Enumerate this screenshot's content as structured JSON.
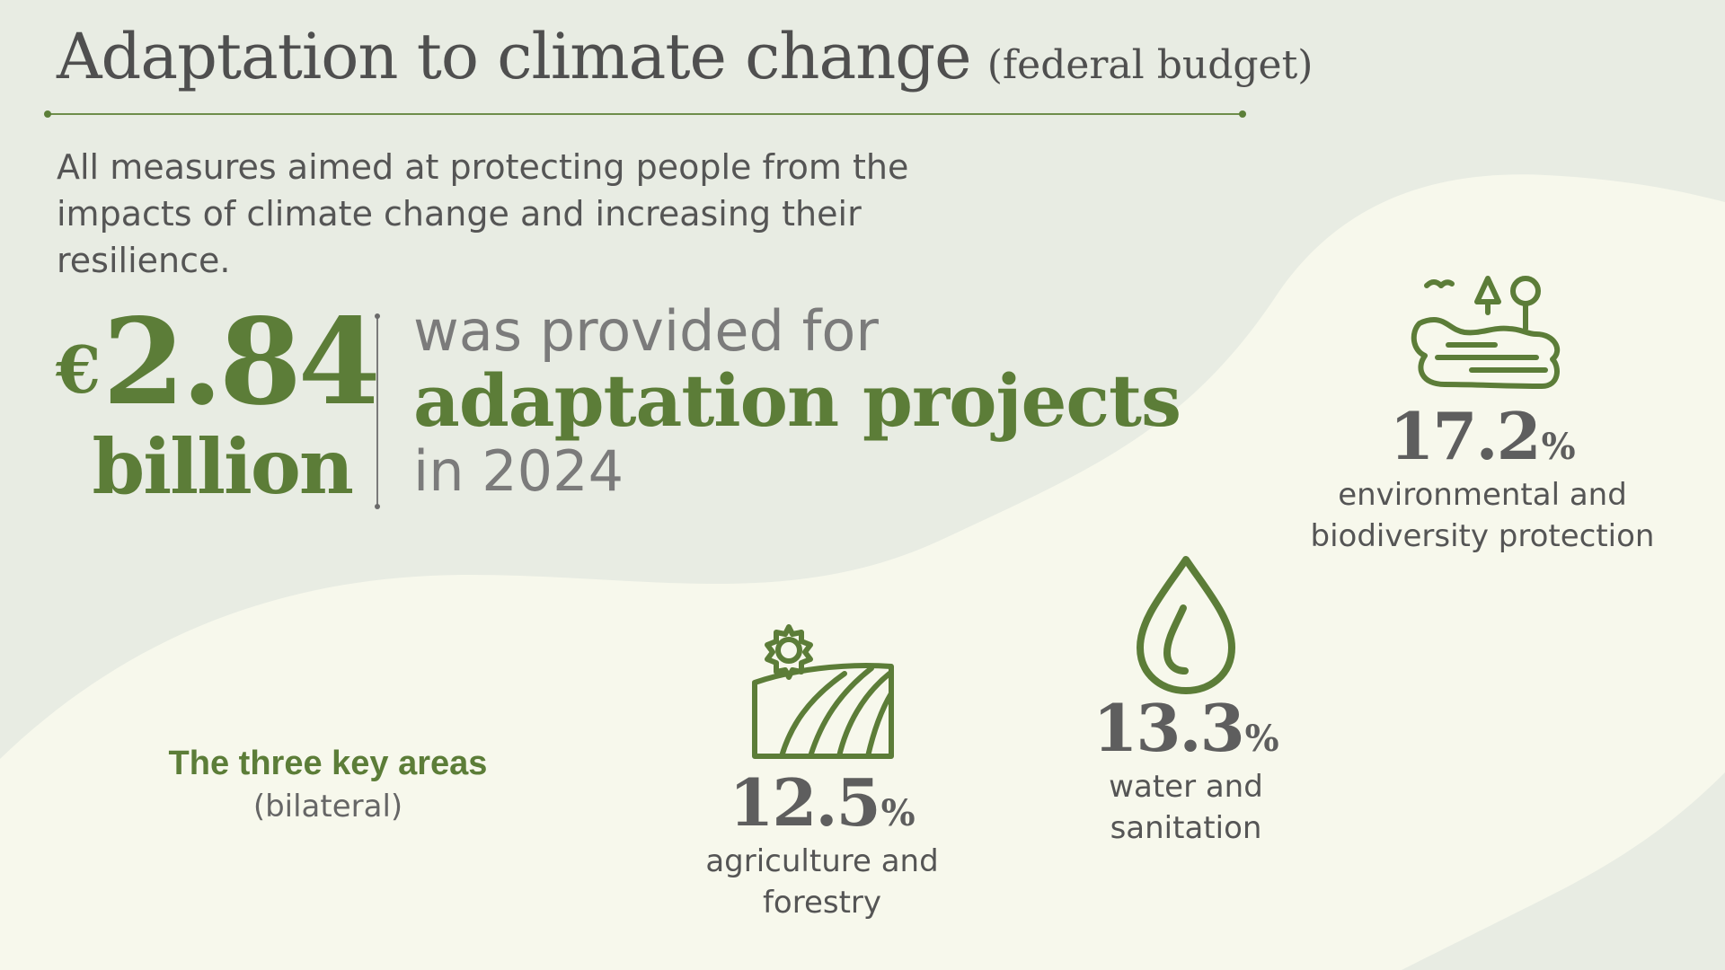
{
  "header": {
    "title": "Adaptation to climate change",
    "title_suffix": "(federal budget)",
    "subtitle": "All measures aimed at protecting people from the impacts of climate change and increasing their resilience."
  },
  "headline": {
    "currency": "€",
    "amount": "2.84",
    "unit": "billion",
    "line1": "was provided for",
    "line2": "adaptation projects",
    "line3": "in 2024"
  },
  "key_areas": {
    "title": "The three key areas",
    "subtitle": "(bilateral)",
    "items": [
      {
        "icon": "landscape-tree-icon",
        "value": "17.2",
        "unit": "%",
        "label_line1": "environmental and",
        "label_line2": "biodiversity protection"
      },
      {
        "icon": "water-drop-icon",
        "value": "13.3",
        "unit": "%",
        "label_line1": "water and",
        "label_line2": "sanitation"
      },
      {
        "icon": "field-sun-icon",
        "value": "12.5",
        "unit": "%",
        "label_line1": "agriculture and",
        "label_line2": "forestry"
      }
    ]
  },
  "colors": {
    "background": "#e8ece3",
    "wave": "#f7f8ec",
    "accent_green": "#5c7d38",
    "text_gray": "#555555"
  }
}
